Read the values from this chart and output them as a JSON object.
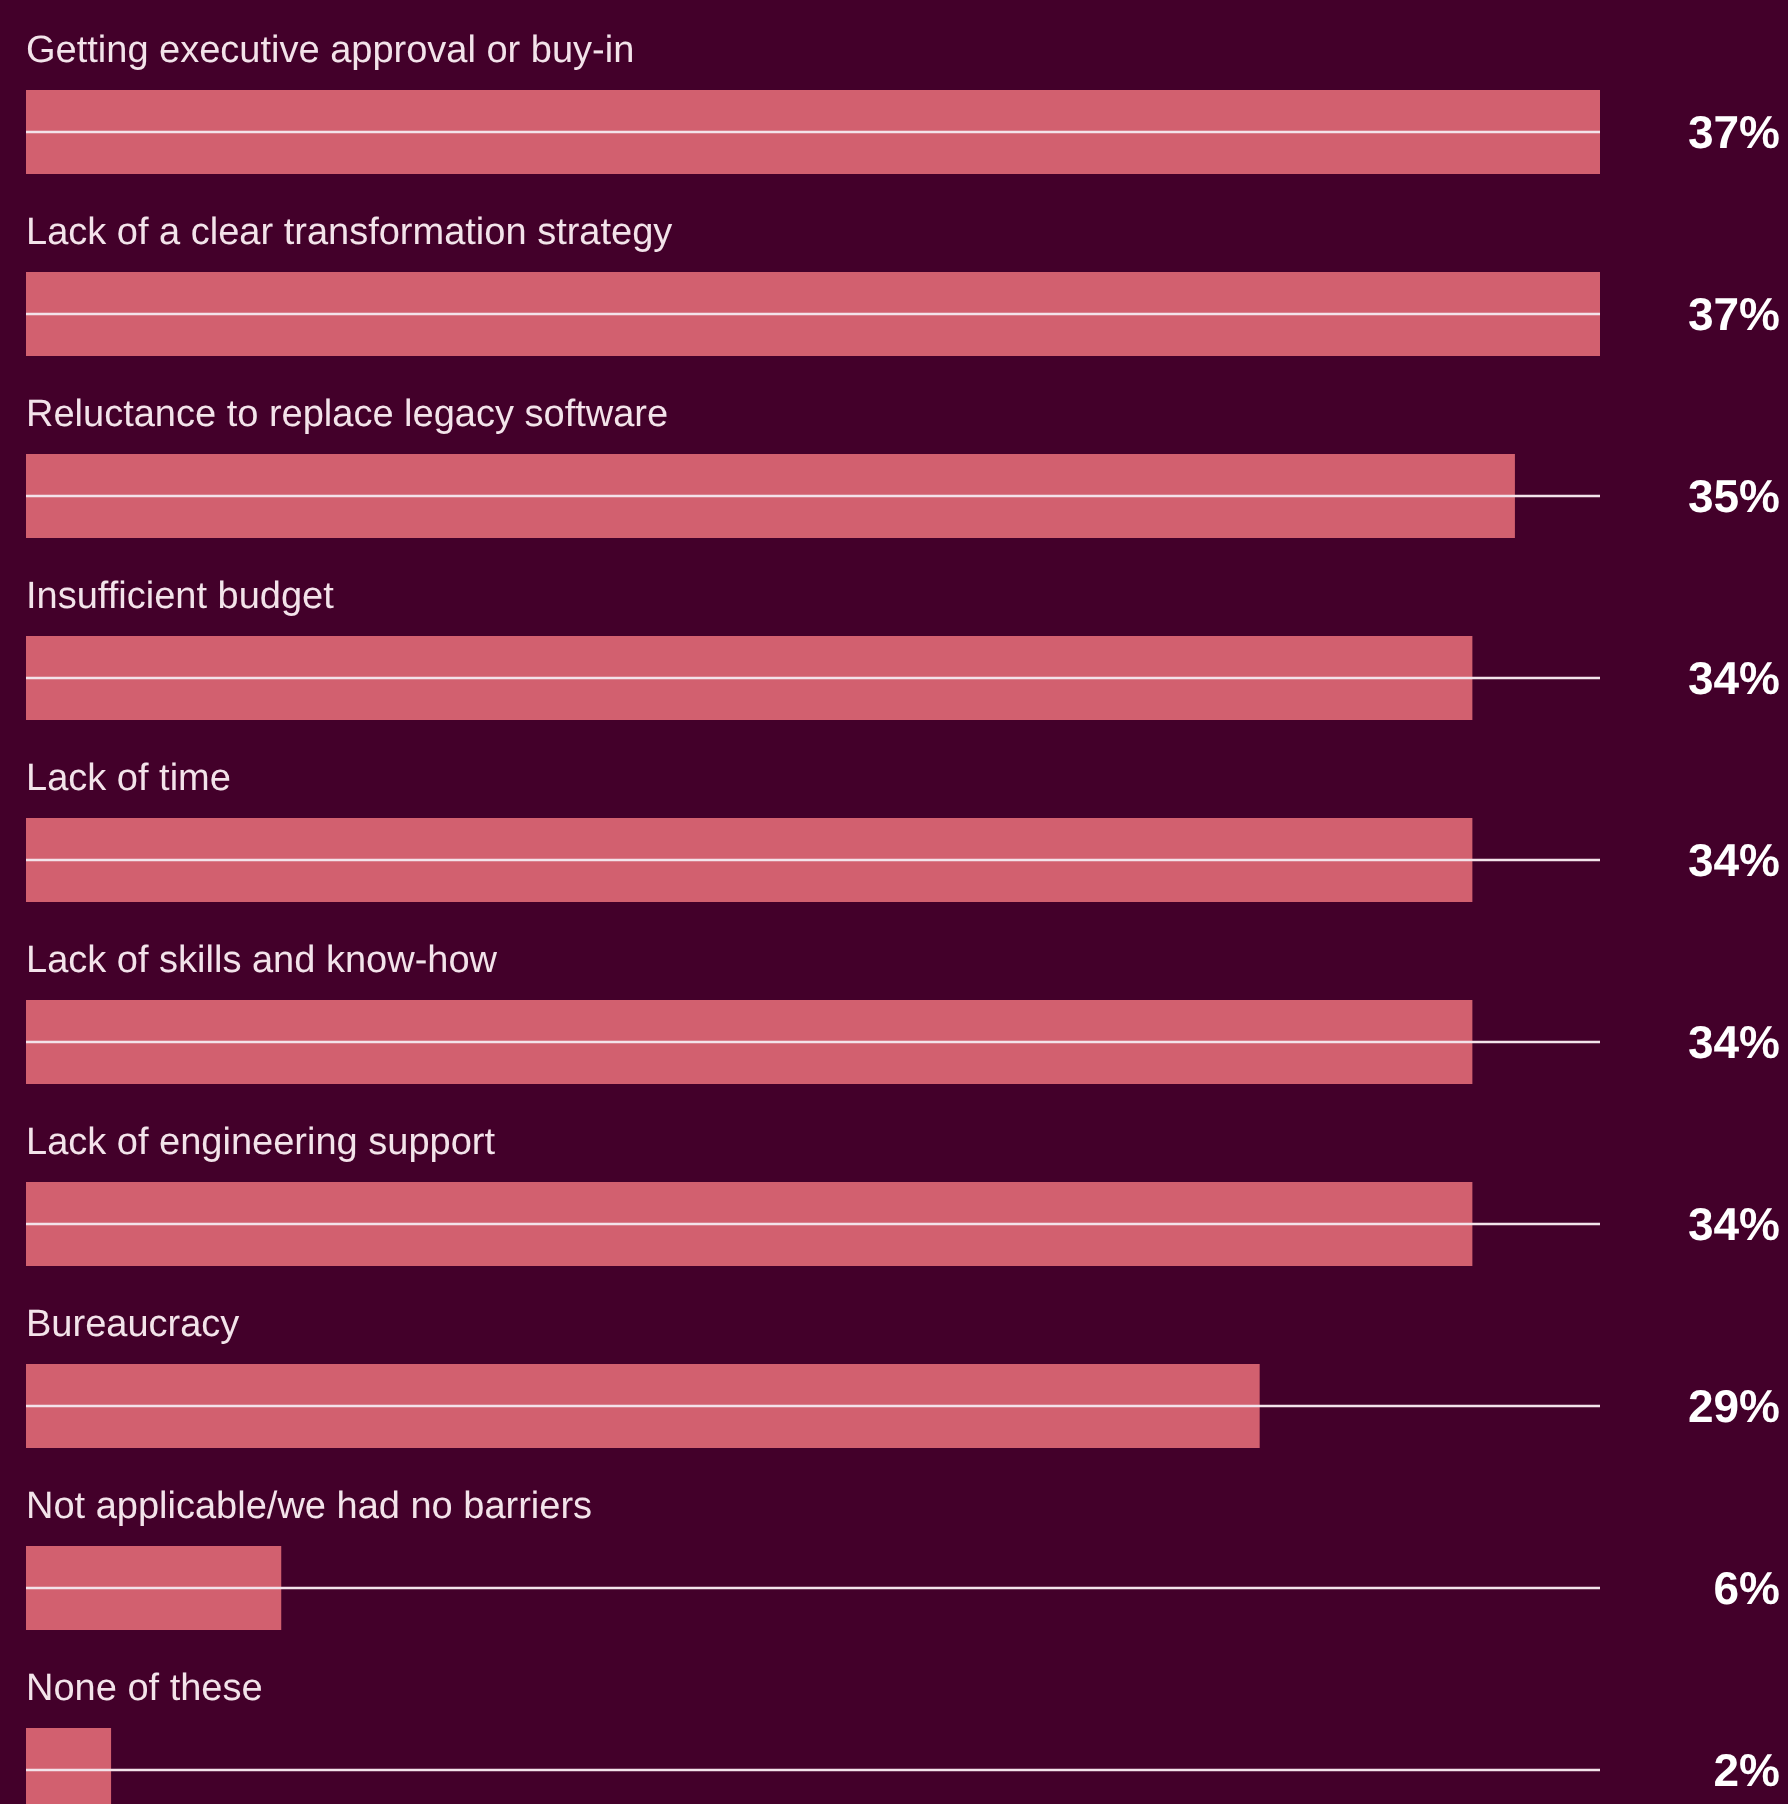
{
  "chart_data": {
    "type": "bar",
    "orientation": "horizontal",
    "categories": [
      "Getting executive approval or buy-in",
      "Lack of a clear transformation strategy",
      "Reluctance to replace legacy software",
      "Insufficient budget",
      "Lack of time",
      "Lack of skills and know-how",
      "Lack of engineering support",
      "Bureaucracy",
      "Not applicable/we had no barriers",
      "None of these"
    ],
    "values": [
      37,
      37,
      35,
      34,
      34,
      34,
      34,
      29,
      6,
      2
    ],
    "value_labels": [
      "37%",
      "37%",
      "35%",
      "34%",
      "34%",
      "34%",
      "34%",
      "29%",
      "6%",
      "2%"
    ],
    "color": "#d2606f"
  }
}
